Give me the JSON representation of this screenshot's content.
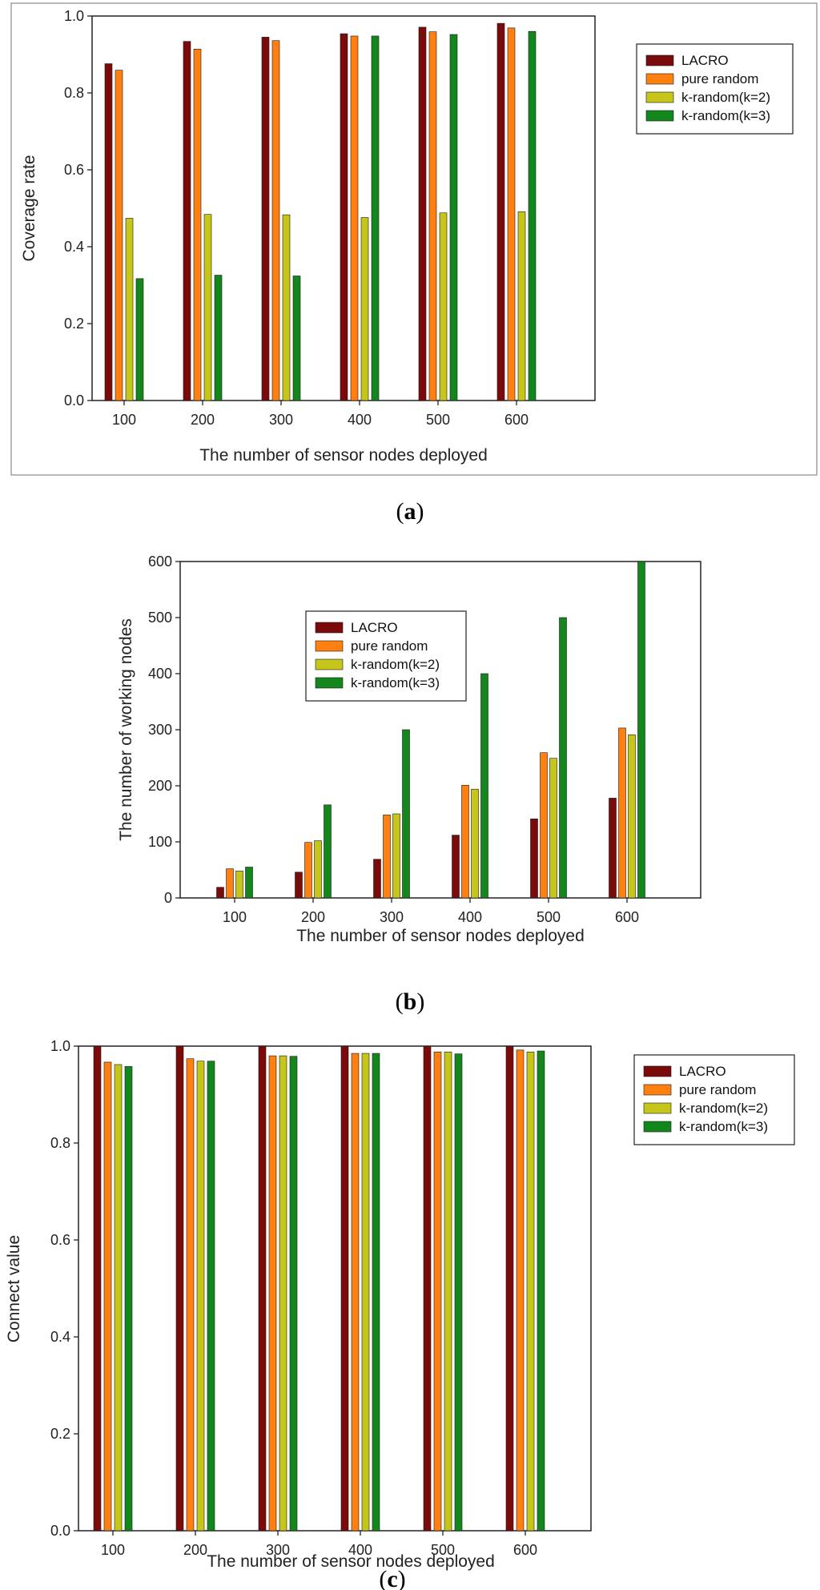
{
  "series_colors": [
    "#7b0a0a",
    "#ff7f10",
    "#c6c61a",
    "#14871c"
  ],
  "chart_data": [
    {
      "type": "bar",
      "panel": "a",
      "caption": {
        "open": "(",
        "letter": "a",
        "close": ")"
      },
      "title": "",
      "xlabel": "The number of sensor nodes deployed",
      "ylabel": "Coverage rate",
      "categories": [
        "100",
        "200",
        "300",
        "400",
        "500",
        "600"
      ],
      "ylim": [
        0,
        1.0
      ],
      "yticks": [
        "0.0",
        "0.2",
        "0.4",
        "0.6",
        "0.8",
        "1.0"
      ],
      "legend_position": "right",
      "series": [
        {
          "name": "LACRO",
          "values": [
            0.876,
            0.934,
            0.945,
            0.954,
            0.971,
            0.981
          ]
        },
        {
          "name": "pure random",
          "values": [
            0.859,
            0.914,
            0.936,
            0.948,
            0.959,
            0.969
          ]
        },
        {
          "name": "k-random(k=2)",
          "values": [
            0.474,
            0.484,
            0.483,
            0.476,
            0.488,
            0.491
          ]
        },
        {
          "name": "k-random(k=3)",
          "values": [
            0.317,
            0.326,
            0.324,
            0.948,
            0.952,
            0.96
          ]
        }
      ]
    },
    {
      "type": "bar",
      "panel": "b",
      "caption": {
        "open": "(",
        "letter": "b",
        "close": ")"
      },
      "title": "",
      "xlabel": "The number of sensor nodes deployed",
      "ylabel": "The number of working nodes",
      "categories": [
        "100",
        "200",
        "300",
        "400",
        "500",
        "600"
      ],
      "ylim": [
        0,
        600
      ],
      "yticks": [
        "0",
        "100",
        "200",
        "300",
        "400",
        "500",
        "600"
      ],
      "legend_position": "upper-left inside",
      "series": [
        {
          "name": "LACRO",
          "values": [
            19,
            46,
            69,
            112,
            141,
            178
          ]
        },
        {
          "name": "pure random",
          "values": [
            52,
            99,
            148,
            201,
            259,
            303
          ]
        },
        {
          "name": "k-random(k=2)",
          "values": [
            48,
            102,
            150,
            194,
            249,
            291
          ]
        },
        {
          "name": "k-random(k=3)",
          "values": [
            55,
            166,
            300,
            400,
            500,
            600
          ]
        }
      ]
    },
    {
      "type": "bar",
      "panel": "c",
      "caption": {
        "open": "(",
        "letter": "c",
        "close": ")"
      },
      "title": "",
      "xlabel": "The number of sensor nodes deployed",
      "ylabel": "Connect value",
      "categories": [
        "100",
        "200",
        "300",
        "400",
        "500",
        "600"
      ],
      "ylim": [
        0,
        1.0
      ],
      "yticks": [
        "0.0",
        "0.2",
        "0.4",
        "0.6",
        "0.8",
        "1.0"
      ],
      "legend_position": "right",
      "series": [
        {
          "name": "LACRO",
          "values": [
            1.0,
            1.0,
            1.0,
            1.0,
            1.0,
            1.0
          ]
        },
        {
          "name": "pure random",
          "values": [
            0.967,
            0.974,
            0.98,
            0.985,
            0.988,
            0.992
          ]
        },
        {
          "name": "k-random(k=2)",
          "values": [
            0.962,
            0.969,
            0.98,
            0.985,
            0.988,
            0.988
          ]
        },
        {
          "name": "k-random(k=3)",
          "values": [
            0.958,
            0.969,
            0.979,
            0.985,
            0.984,
            0.99
          ]
        }
      ]
    }
  ]
}
